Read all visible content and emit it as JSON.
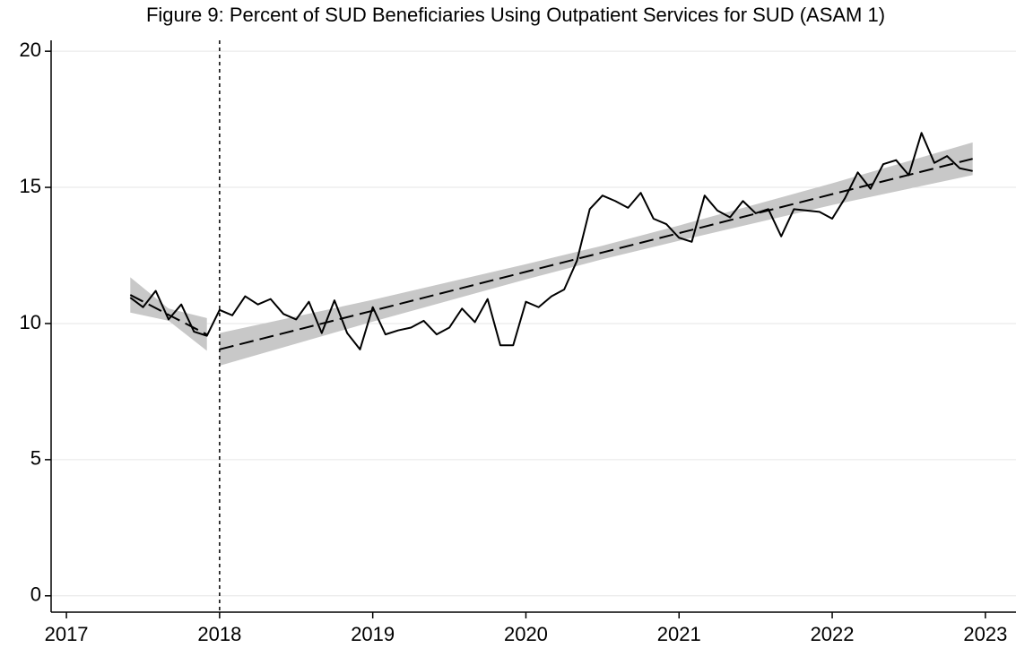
{
  "chart_data": {
    "type": "line",
    "title": "Figure 9: Percent of SUD Beneficiaries Using Outpatient Services for SUD (ASAM 1)",
    "x": [
      2017.417,
      2017.5,
      2017.583,
      2017.667,
      2017.75,
      2017.833,
      2017.917,
      2018.0,
      2018.083,
      2018.167,
      2018.25,
      2018.333,
      2018.417,
      2018.5,
      2018.583,
      2018.667,
      2018.75,
      2018.833,
      2018.917,
      2019.0,
      2019.083,
      2019.167,
      2019.25,
      2019.333,
      2019.417,
      2019.5,
      2019.583,
      2019.667,
      2019.75,
      2019.833,
      2019.917,
      2020.0,
      2020.083,
      2020.167,
      2020.25,
      2020.333,
      2020.417,
      2020.5,
      2020.583,
      2020.667,
      2020.75,
      2020.833,
      2020.917,
      2021.0,
      2021.083,
      2021.167,
      2021.25,
      2021.333,
      2021.417,
      2021.5,
      2021.583,
      2021.667,
      2021.75,
      2021.833,
      2021.917,
      2022.0,
      2022.083,
      2022.167,
      2022.25,
      2022.333,
      2022.417,
      2022.5,
      2022.583,
      2022.667,
      2022.75,
      2022.833,
      2022.917
    ],
    "values": [
      10.95,
      10.6,
      11.2,
      10.15,
      10.7,
      9.7,
      9.55,
      10.5,
      10.3,
      11.0,
      10.7,
      10.9,
      10.35,
      10.15,
      10.8,
      9.65,
      10.85,
      9.65,
      9.05,
      10.6,
      9.6,
      9.75,
      9.85,
      10.1,
      9.6,
      9.85,
      10.55,
      10.05,
      10.9,
      9.2,
      9.2,
      10.8,
      10.6,
      11.0,
      11.25,
      12.3,
      14.2,
      14.7,
      14.5,
      14.25,
      14.8,
      13.85,
      13.65,
      13.15,
      13.0,
      14.7,
      14.15,
      13.9,
      14.5,
      14.05,
      14.2,
      13.2,
      14.2,
      14.15,
      14.1,
      13.85,
      14.6,
      15.55,
      14.95,
      15.85,
      16.0,
      15.45,
      17.0,
      15.9,
      16.15,
      15.7,
      15.6
    ],
    "color": "#000000",
    "trend_lines": [
      {
        "x": [
          2017.417,
          2017.667,
          2017.917
        ],
        "values": [
          11.05,
          10.32,
          9.6
        ],
        "lower": [
          10.4,
          10.1,
          9.0
        ],
        "upper": [
          11.7,
          10.55,
          10.2
        ]
      },
      {
        "x": [
          2018.0,
          2019.0,
          2020.0,
          2020.5,
          2021.0,
          2022.0,
          2022.917
        ],
        "values": [
          9.05,
          10.47,
          11.9,
          12.61,
          13.32,
          14.75,
          16.05
        ],
        "lower": [
          8.45,
          10.07,
          11.62,
          12.36,
          13.04,
          14.35,
          15.45
        ],
        "upper": [
          9.65,
          10.87,
          12.18,
          12.86,
          13.6,
          15.15,
          16.65
        ]
      }
    ],
    "band_color": "#c8c8c8",
    "vline": 2018,
    "xlim": [
      2016.9,
      2023.2
    ],
    "xticks": [
      2017,
      2018,
      2019,
      2020,
      2021,
      2022,
      2023
    ],
    "ylim": [
      -0.6,
      20.4
    ],
    "yticks": [
      0,
      5,
      10,
      15,
      20
    ],
    "grid": true
  }
}
